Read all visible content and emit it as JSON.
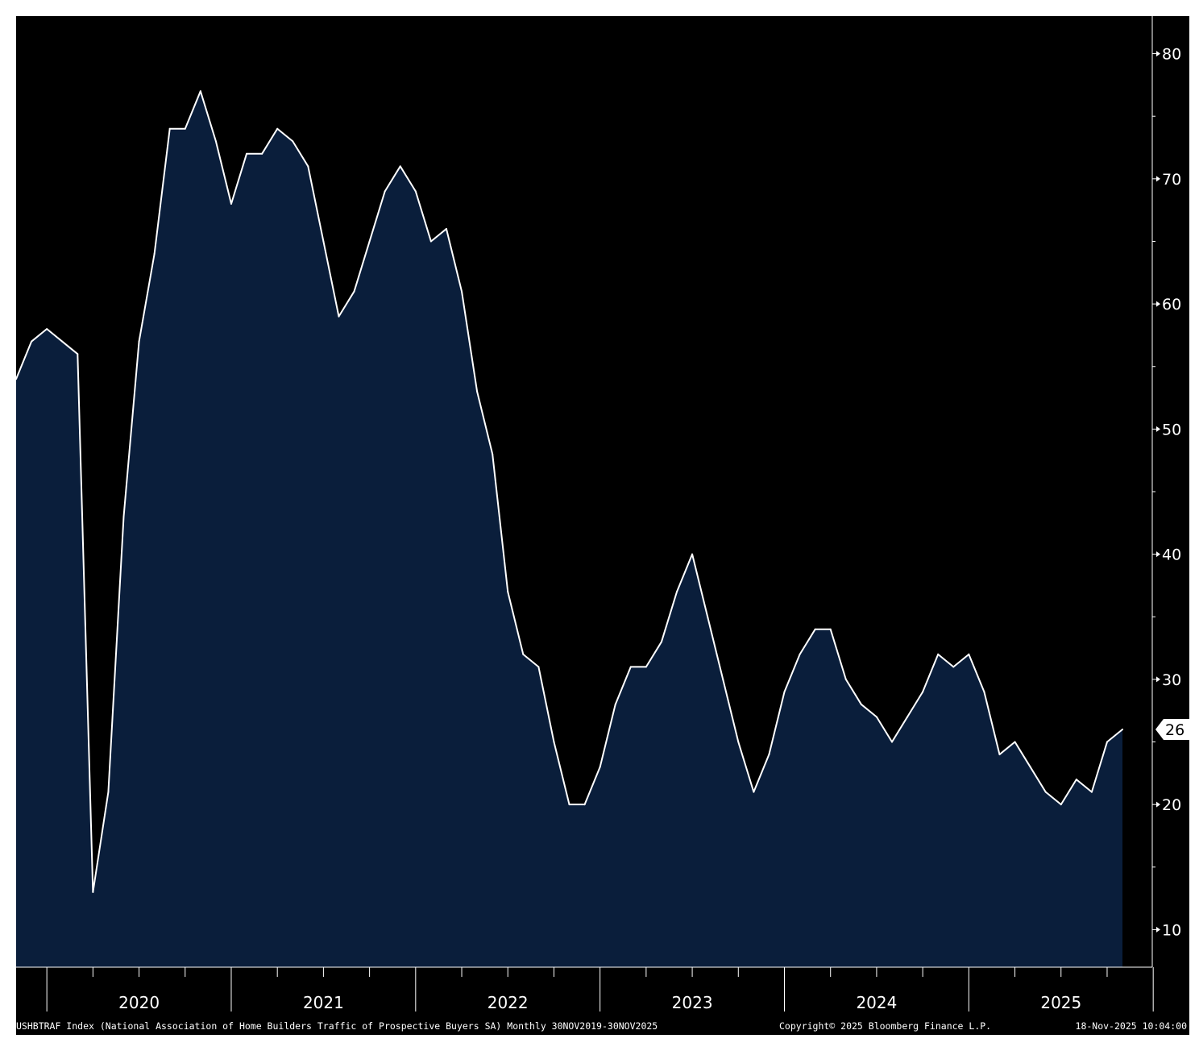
{
  "chart_data": {
    "type": "area",
    "ticker": "USHBTRAF Index",
    "frequency": "Monthly",
    "x_start": "2019-11",
    "x_end": "2025-11",
    "x_categories": [
      "2020",
      "2021",
      "2022",
      "2023",
      "2024",
      "2025"
    ],
    "yticks": [
      10,
      20,
      30,
      40,
      50,
      60,
      70,
      80
    ],
    "ylim": [
      7,
      83
    ],
    "y_axis_position": "right",
    "grid": false,
    "last_value_label": "26",
    "colors": {
      "background": "#000000",
      "fill": "#0a1e3b",
      "line": "#ffffff"
    },
    "series": [
      {
        "x": [
          "2019-11",
          "2019-12",
          "2020-01",
          "2020-02",
          "2020-03",
          "2020-04",
          "2020-05",
          "2020-06",
          "2020-07",
          "2020-08",
          "2020-09",
          "2020-10",
          "2020-11",
          "2020-12",
          "2021-01",
          "2021-02",
          "2021-03",
          "2021-04",
          "2021-05",
          "2021-06",
          "2021-07",
          "2021-08",
          "2021-09",
          "2021-10",
          "2021-11",
          "2021-12",
          "2022-01",
          "2022-02",
          "2022-03",
          "2022-04",
          "2022-05",
          "2022-06",
          "2022-07",
          "2022-08",
          "2022-09",
          "2022-10",
          "2022-11",
          "2022-12",
          "2023-01",
          "2023-02",
          "2023-03",
          "2023-04",
          "2023-05",
          "2023-06",
          "2023-07",
          "2023-08",
          "2023-09",
          "2023-10",
          "2023-11",
          "2023-12",
          "2024-01",
          "2024-02",
          "2024-03",
          "2024-04",
          "2024-05",
          "2024-06",
          "2024-07",
          "2024-08",
          "2024-09",
          "2024-10",
          "2024-11",
          "2024-12",
          "2025-01",
          "2025-02",
          "2025-03",
          "2025-04",
          "2025-05",
          "2025-06",
          "2025-07",
          "2025-08",
          "2025-09",
          "2025-10",
          "2025-11"
        ],
        "values": [
          54,
          57,
          58,
          57,
          56,
          13,
          21,
          43,
          57,
          64,
          74,
          74,
          77,
          73,
          68,
          72,
          72,
          74,
          73,
          71,
          65,
          59,
          61,
          65,
          69,
          71,
          69,
          65,
          66,
          61,
          53,
          48,
          37,
          32,
          31,
          25,
          20,
          20,
          23,
          28,
          31,
          31,
          33,
          37,
          40,
          35,
          30,
          25,
          21,
          24,
          29,
          32,
          34,
          34,
          30,
          28,
          27,
          25,
          27,
          29,
          32,
          31,
          32,
          29,
          24,
          25,
          23,
          21,
          20,
          22,
          21,
          25,
          26
        ]
      }
    ],
    "footer": {
      "description": "USHBTRAF Index (National Association of Home Builders Traffic of Prospective Buyers SA) Monthly 30NOV2019-30NOV2025",
      "copyright": "Copyright© 2025 Bloomberg Finance L.P.",
      "timestamp": "18-Nov-2025 10:04:00"
    }
  }
}
